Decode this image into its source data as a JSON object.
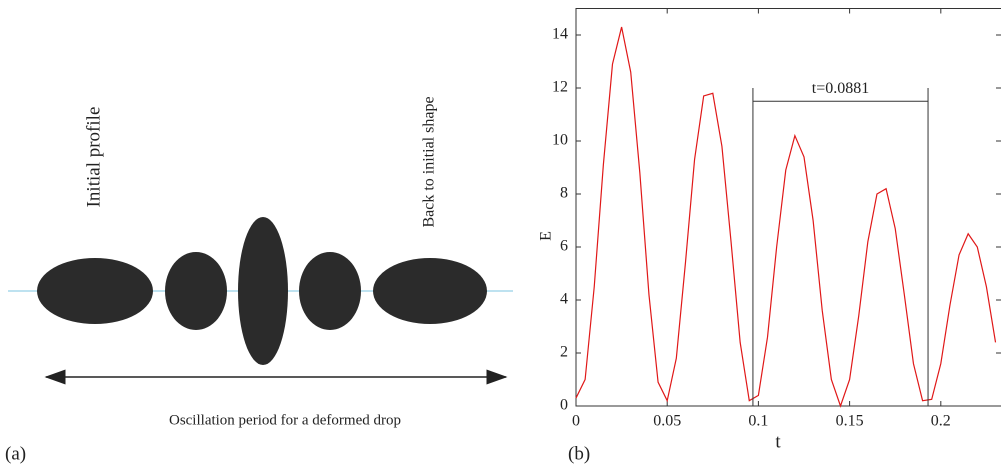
{
  "diagram": {
    "labels": [
      "Initial profile",
      "Back to initial shape"
    ],
    "caption": "Oscillation period for a deformed drop",
    "panel_label": "(a)"
  },
  "chart_data": {
    "type": "line",
    "panel_label": "(b)",
    "xlabel": "t",
    "ylabel": "E",
    "x": [
      0,
      0.005,
      0.01,
      0.015,
      0.02,
      0.025,
      0.03,
      0.035,
      0.04,
      0.045,
      0.05,
      0.055,
      0.06,
      0.065,
      0.07,
      0.075,
      0.08,
      0.085,
      0.09,
      0.095,
      0.1,
      0.105,
      0.11,
      0.115,
      0.12,
      0.125,
      0.13,
      0.135,
      0.14,
      0.145,
      0.15,
      0.155,
      0.16,
      0.165,
      0.17,
      0.175,
      0.18,
      0.185,
      0.19,
      0.195,
      0.2,
      0.205,
      0.21,
      0.215,
      0.22,
      0.225,
      0.23
    ],
    "values": [
      0.3,
      1.0,
      4.5,
      9.1,
      12.9,
      14.3,
      12.6,
      8.8,
      4.2,
      0.9,
      0.2,
      1.8,
      5.4,
      9.3,
      11.7,
      11.8,
      9.8,
      6.2,
      2.4,
      0.2,
      0.4,
      2.6,
      6.0,
      8.9,
      10.2,
      9.4,
      7.0,
      3.6,
      1.0,
      0.0,
      1.0,
      3.4,
      6.2,
      8.0,
      8.2,
      6.7,
      4.2,
      1.6,
      0.2,
      0.25,
      1.6,
      3.8,
      5.7,
      6.5,
      6.0,
      4.5,
      2.4
    ],
    "color": "#e01818",
    "xlim": [
      0,
      0.233
    ],
    "ylim": [
      0,
      15
    ],
    "xticks": [
      0,
      0.05,
      0.1,
      0.15,
      0.2
    ],
    "yticks": [
      0,
      2,
      4,
      6,
      8,
      10,
      12,
      14
    ],
    "bracket": {
      "label": "t=0.0881",
      "x0": 0.097,
      "x1": 0.193,
      "y": 11.5,
      "y_top": 12
    }
  }
}
